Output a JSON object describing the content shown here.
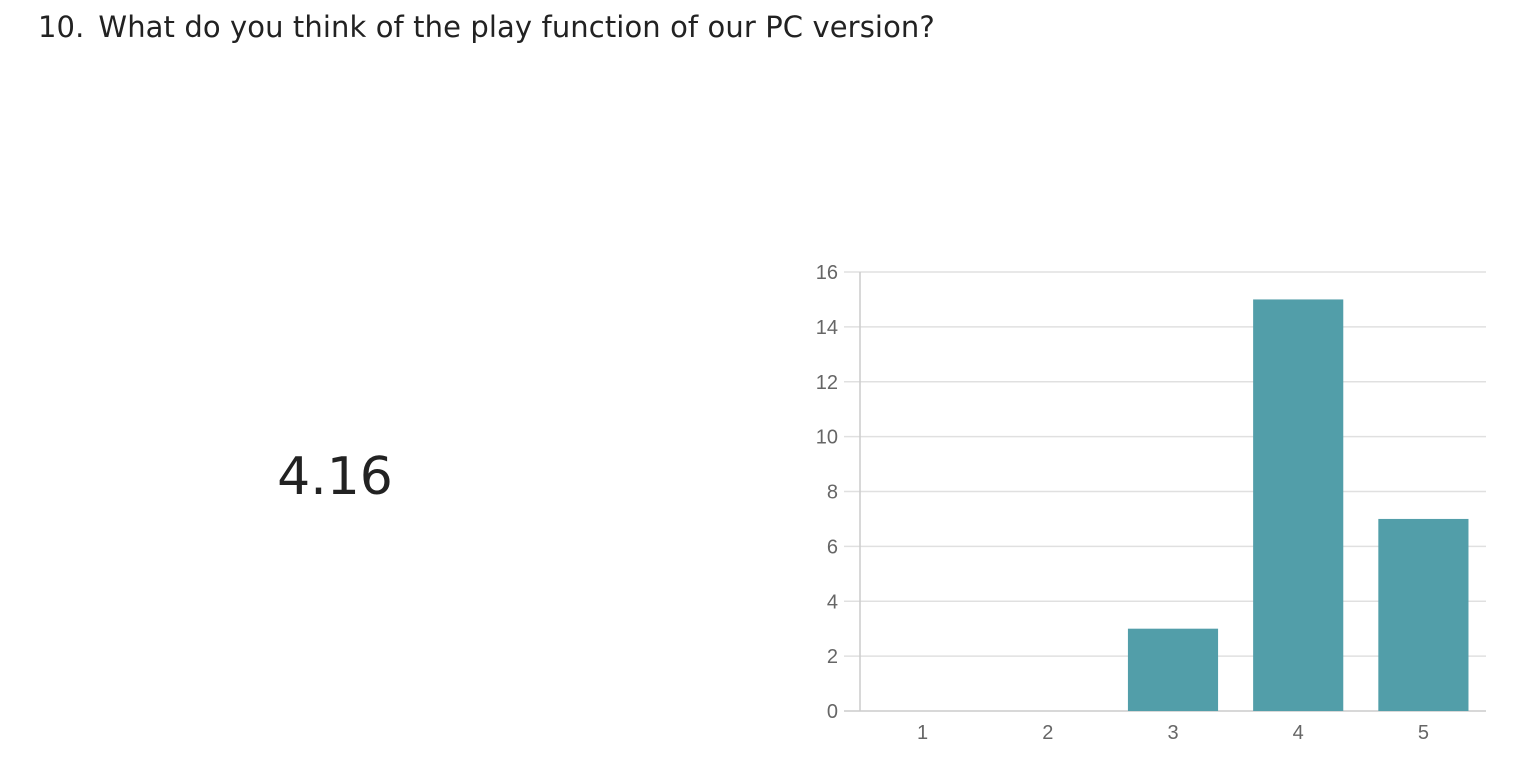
{
  "question": {
    "number": "10.",
    "text": "What do you think of the play function of our PC version?"
  },
  "average_score": "4.16",
  "colors": {
    "bar": "#529ea9",
    "grid": "#e0e0e0",
    "axis": "#cccccc",
    "tick_text": "#666666",
    "text": "#222222"
  },
  "chart_data": {
    "type": "bar",
    "categories": [
      "1",
      "2",
      "3",
      "4",
      "5"
    ],
    "values": [
      0,
      0,
      3,
      15,
      7
    ],
    "ylim": [
      0,
      16
    ],
    "yticks": [
      0,
      2,
      4,
      6,
      8,
      10,
      12,
      14,
      16
    ],
    "grid": true,
    "legend": "none"
  }
}
